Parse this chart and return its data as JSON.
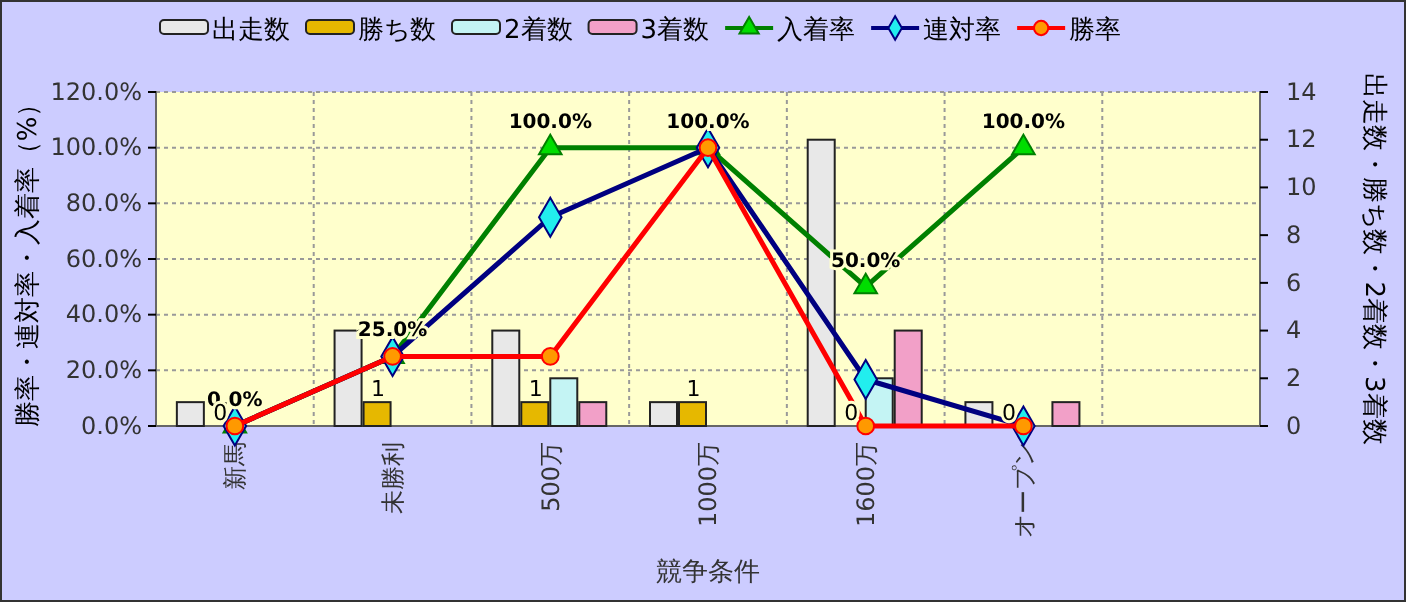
{
  "chart_data": {
    "type": "bar",
    "xlabel": "競争条件",
    "ylabel": "勝率・連対率・入着率（%）",
    "y2label": "出走数・勝ち数・2着数・3着数",
    "categories": [
      "新馬",
      "未勝利",
      "500万",
      "1000万",
      "1600万",
      "オープン",
      null
    ],
    "series": [
      {
        "name": "出走数",
        "color": "#e8e8e8",
        "axis": "y2",
        "values": [
          1,
          4,
          4,
          1,
          12,
          1,
          null
        ]
      },
      {
        "name": "勝ち数",
        "color": "#e6b800",
        "axis": "y2",
        "values": [
          0,
          1,
          1,
          1,
          0,
          0,
          null
        ],
        "value_labels": [
          "0",
          "1",
          "1",
          "1",
          "0",
          "0",
          null
        ]
      },
      {
        "name": "2着数",
        "color": "#c4f4f4",
        "axis": "y2",
        "values": [
          0,
          0,
          2,
          0,
          2,
          0,
          null
        ]
      },
      {
        "name": "3着数",
        "color": "#f2a0c8",
        "axis": "y2",
        "values": [
          0,
          0,
          1,
          0,
          4,
          1,
          null
        ]
      },
      {
        "name": "入着率",
        "type": "line",
        "color": "#008000",
        "marker": "triangle",
        "values": [
          0,
          25,
          100,
          100,
          50,
          100,
          null
        ],
        "value_labels": [
          "0.0%",
          "25.0%",
          "100.0%",
          "100.0%",
          "50.0%",
          "100.0%",
          null
        ]
      },
      {
        "name": "連対率",
        "type": "line",
        "color": "#000080",
        "marker": "diamond",
        "values": [
          0,
          25,
          75,
          100,
          16.7,
          0,
          null
        ]
      },
      {
        "name": "勝率",
        "type": "line",
        "color": "#ff0000",
        "marker": "circle",
        "values": [
          0,
          25,
          25,
          100,
          0,
          0,
          null
        ]
      }
    ],
    "ylim": [
      0,
      120
    ],
    "yticks": [
      {
        "value": 0,
        "label": "0.0%"
      },
      {
        "value": 20,
        "label": "20.0%"
      },
      {
        "value": 40,
        "label": "40.0%"
      },
      {
        "value": 60,
        "label": "60.0%"
      },
      {
        "value": 80,
        "label": "80.0%"
      },
      {
        "value": 100,
        "label": "100.0%"
      },
      {
        "value": 120,
        "label": "120.0%"
      }
    ],
    "y2lim": [
      0,
      14
    ],
    "y2ticks": [
      0,
      2,
      4,
      6,
      8,
      10,
      12,
      14
    ],
    "grid": true,
    "legend": "top"
  }
}
